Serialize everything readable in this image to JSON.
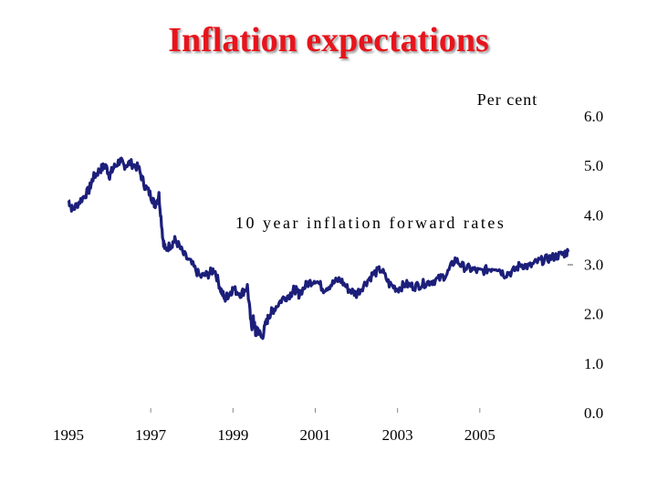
{
  "slide": {
    "title": "Inflation expectations"
  },
  "chart_data": {
    "type": "line",
    "title": "Inflation expectations",
    "ylabel": "Per cent",
    "ylim": [
      0,
      6
    ],
    "yticks": [
      "0.0",
      "1.0",
      "2.0",
      "3.0",
      "4.0",
      "5.0",
      "6.0"
    ],
    "xlim": [
      1995,
      2007.2
    ],
    "xtick_values": [
      1995,
      1997,
      1999,
      2001,
      2003,
      2005
    ],
    "xtick_labels": [
      "1995",
      "1997",
      "1999",
      "2001",
      "2003",
      "2005"
    ],
    "grid": false,
    "annotation": "10 year inflation forward rates",
    "colors": {
      "line": "#1c1f7a",
      "title": "#e8141c"
    },
    "series": [
      {
        "name": "10 year inflation forward rates",
        "x": [
          1995.0,
          1995.1,
          1995.3,
          1995.5,
          1995.6,
          1995.75,
          1995.9,
          1996.0,
          1996.1,
          1996.25,
          1996.35,
          1996.5,
          1996.7,
          1996.85,
          1997.0,
          1997.1,
          1997.2,
          1997.3,
          1997.35,
          1997.5,
          1997.6,
          1997.8,
          1998.0,
          1998.2,
          1998.4,
          1998.55,
          1998.7,
          1998.8,
          1998.9,
          1999.0,
          1999.2,
          1999.35,
          1999.45,
          1999.5,
          1999.55,
          1999.6,
          1999.7,
          1999.8,
          1999.9,
          2000.0,
          2000.2,
          2000.4,
          2000.5,
          2000.6,
          2000.8,
          2001.0,
          2001.2,
          2001.4,
          2001.6,
          2001.8,
          2002.0,
          2002.2,
          2002.4,
          2002.6,
          2002.8,
          2003.0,
          2003.2,
          2003.4,
          2003.6,
          2003.8,
          2004.0,
          2004.2,
          2004.4,
          2004.6,
          2004.8,
          2005.0,
          2005.2,
          2005.4,
          2005.6,
          2005.8,
          2006.0,
          2006.2,
          2006.4,
          2006.6,
          2006.8,
          2007.0,
          2007.15
        ],
        "values": [
          4.3,
          4.1,
          4.3,
          4.5,
          4.75,
          4.9,
          5.0,
          4.8,
          4.95,
          5.1,
          5.0,
          5.05,
          4.95,
          4.6,
          4.4,
          4.2,
          4.4,
          3.5,
          3.3,
          3.4,
          3.5,
          3.2,
          3.0,
          2.75,
          2.8,
          2.9,
          2.5,
          2.3,
          2.4,
          2.5,
          2.4,
          2.55,
          1.7,
          1.9,
          1.6,
          1.7,
          1.5,
          1.8,
          2.0,
          2.1,
          2.3,
          2.4,
          2.5,
          2.4,
          2.6,
          2.7,
          2.5,
          2.6,
          2.7,
          2.5,
          2.4,
          2.6,
          2.8,
          2.9,
          2.6,
          2.5,
          2.6,
          2.55,
          2.6,
          2.65,
          2.7,
          2.8,
          3.1,
          2.95,
          2.9,
          2.85,
          2.9,
          2.95,
          2.8,
          2.85,
          3.0,
          2.95,
          3.05,
          3.1,
          3.15,
          3.2,
          3.25
        ]
      }
    ]
  }
}
